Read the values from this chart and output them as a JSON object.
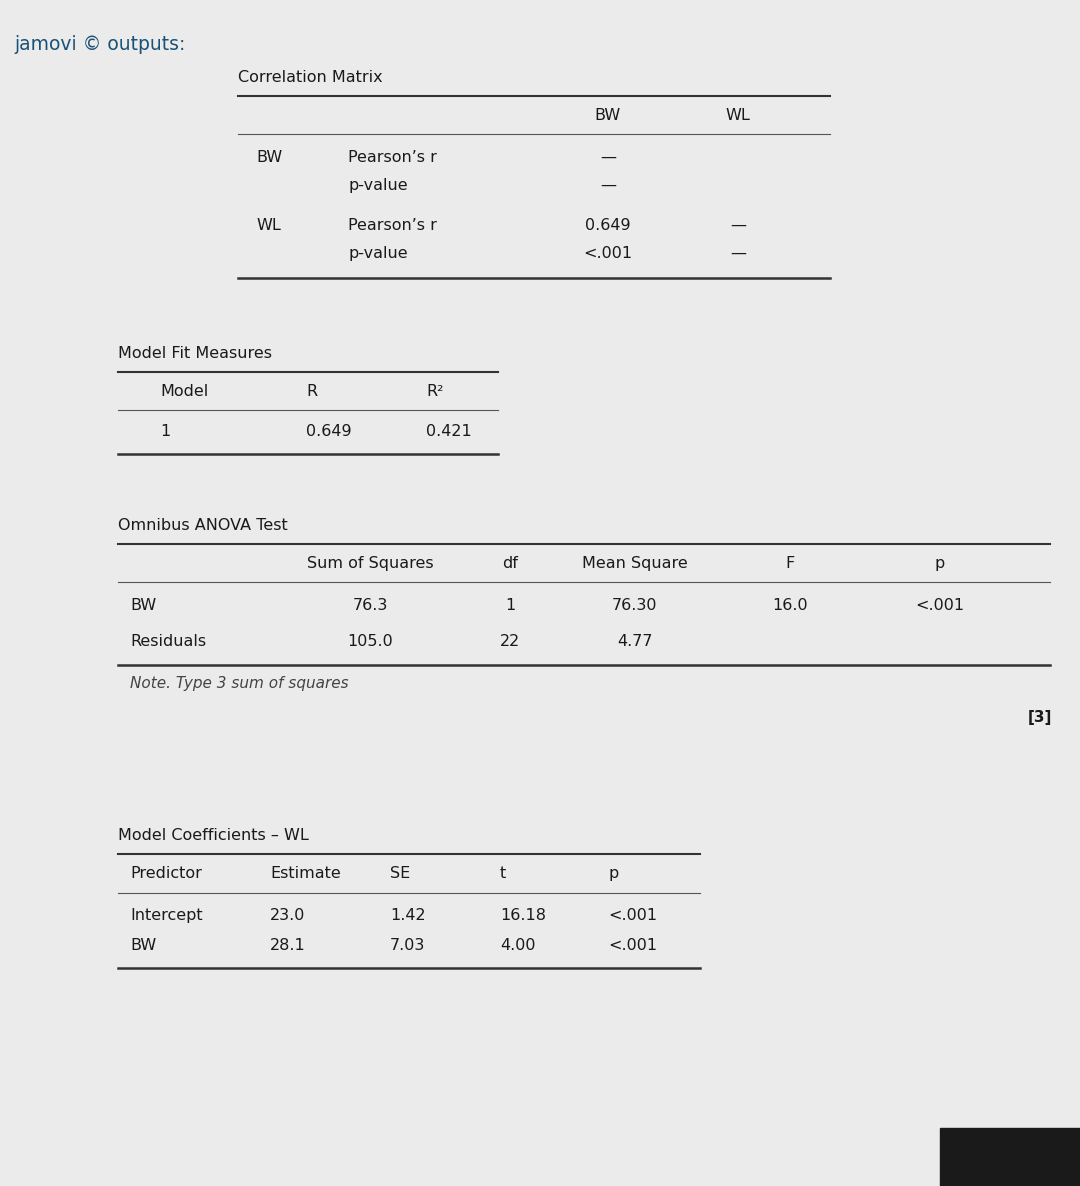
{
  "bg_color": "#ebebeb",
  "title": "jamovi © outputs:",
  "title_color": "#1a5276",
  "text_color": "#1a1a1a",
  "note_color": "#444444",
  "corr_title": "Correlation Matrix",
  "model_fit_title": "Model Fit Measures",
  "anova_title": "Omnibus ANOVA Test",
  "anova_note": "Note. Type 3 sum of squares",
  "ref_label": "[3]",
  "coeff_title": "Model Coefficients – WL"
}
